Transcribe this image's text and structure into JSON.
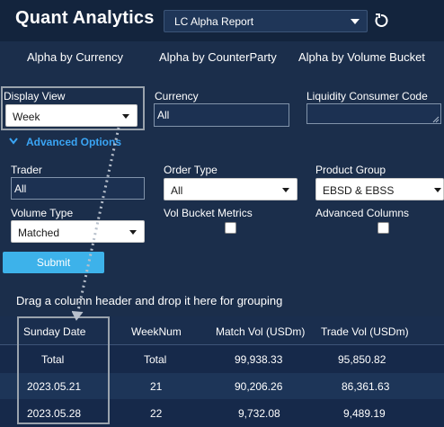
{
  "header": {
    "title": "Quant Analytics",
    "report_select": "LC Alpha Report"
  },
  "tabs": [
    {
      "label": "Alpha by Currency"
    },
    {
      "label": "Alpha by CounterParty"
    },
    {
      "label": "Alpha by Volume Bucket"
    }
  ],
  "filters": {
    "display_view": {
      "label": "Display View",
      "value": "Week"
    },
    "currency": {
      "label": "Currency",
      "value": "All"
    },
    "liquidity": {
      "label": "Liquidity Consumer Code",
      "value": ""
    },
    "advanced_label": "Advanced Options",
    "trader": {
      "label": "Trader",
      "value": "All"
    },
    "order_type": {
      "label": "Order Type",
      "value": "All"
    },
    "product_group": {
      "label": "Product Group",
      "value": "EBSD & EBSS"
    },
    "volume_type": {
      "label": "Volume Type",
      "value": "Matched"
    },
    "vol_bucket": {
      "label": "Vol Bucket Metrics",
      "checked": false
    },
    "advanced_columns": {
      "label": "Advanced Columns",
      "checked": false
    },
    "submit_label": "Submit"
  },
  "grid": {
    "group_hint": "Drag a column header and drop it here for grouping",
    "columns": [
      "Sunday Date",
      "WeekNum",
      "Match Vol (USDm)",
      "Trade Vol (USDm)"
    ],
    "rows": [
      [
        "Total",
        "Total",
        "99,938.33",
        "95,850.82"
      ],
      [
        "2023.05.21",
        "21",
        "90,206.26",
        "86,361.63"
      ],
      [
        "2023.05.28",
        "22",
        "9,732.08",
        "9,489.19"
      ]
    ]
  },
  "colors": {
    "background": "#1b2e4b",
    "accent": "#3aa5f5",
    "submit": "#3db2ea"
  }
}
